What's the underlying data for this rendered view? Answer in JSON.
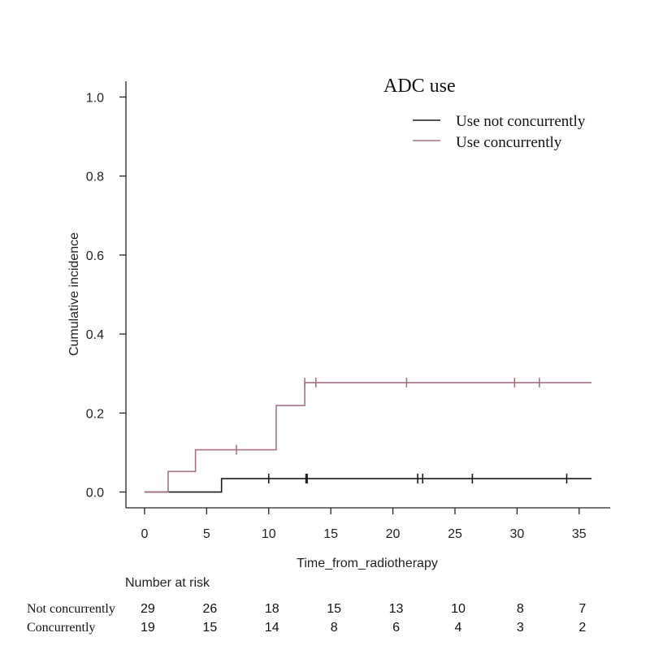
{
  "chart_data": {
    "type": "line",
    "subtype": "step",
    "xlabel": "Time_from_radiotherapy",
    "ylabel": "Cumulative incidence",
    "xlim": [
      -1.5,
      37.5
    ],
    "ylim": [
      -0.04,
      1.04
    ],
    "x_ticks": [
      0,
      5,
      10,
      15,
      20,
      25,
      30,
      35
    ],
    "y_ticks": [
      0.0,
      0.2,
      0.4,
      0.6,
      0.8,
      1.0
    ],
    "y_tick_labels": [
      "0.0",
      "0.2",
      "0.4",
      "0.6",
      "0.8",
      "1.0"
    ],
    "grid": false,
    "legend": {
      "title": "ADC use",
      "position": "top-right"
    },
    "series": [
      {
        "name": "Use not concurrently",
        "color": "#1a1a1a",
        "steps": [
          [
            0,
            0.0
          ],
          [
            6.2,
            0.034
          ],
          [
            36,
            0.034
          ]
        ],
        "censor": [
          10,
          13,
          13.1,
          22,
          22.4,
          26.4,
          34
        ]
      },
      {
        "name": "Use concurrently",
        "color": "#a8737f",
        "steps": [
          [
            0,
            0.0
          ],
          [
            1.9,
            0.052
          ],
          [
            4.1,
            0.107
          ],
          [
            10.6,
            0.219
          ],
          [
            12.9,
            0.277
          ],
          [
            36,
            0.277
          ]
        ],
        "censor": [
          7.4,
          12.9,
          13.8,
          21.1,
          29.8,
          31.8
        ]
      }
    ],
    "risk_table": {
      "title": "Number at risk",
      "times": [
        0,
        5,
        10,
        15,
        20,
        25,
        30,
        35
      ],
      "rows": [
        {
          "label": "Not concurrently",
          "values": [
            29,
            26,
            18,
            15,
            13,
            10,
            8,
            7
          ]
        },
        {
          "label": "Concurrently",
          "values": [
            19,
            15,
            14,
            8,
            6,
            4,
            3,
            2
          ]
        }
      ]
    }
  }
}
